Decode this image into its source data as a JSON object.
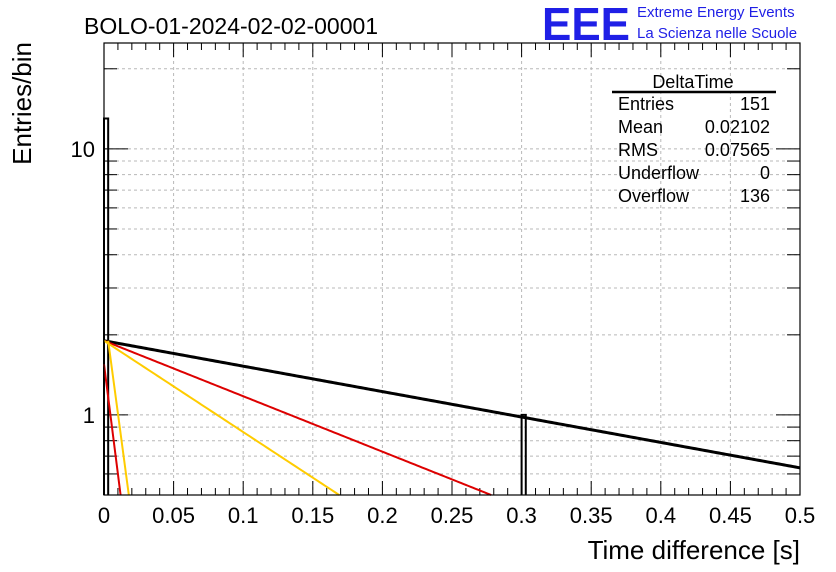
{
  "chart_data": {
    "type": "histogram",
    "title": "BOLO-01-2024-02-02-00001",
    "xlabel": "Time difference [s]",
    "ylabel": "Entries/bin",
    "xlim": [
      0,
      0.5
    ],
    "ylim": [
      0.5,
      25
    ],
    "yscale": "log",
    "grid": true,
    "x_ticks": [
      "0",
      "0.05",
      "0.1",
      "0.15",
      "0.2",
      "0.25",
      "0.3",
      "0.35",
      "0.4",
      "0.45",
      "0.5"
    ],
    "y_tick_labels": [
      {
        "value": 1,
        "label": "1"
      },
      {
        "value": 10,
        "label": "10"
      }
    ],
    "histogram": {
      "bins": [
        {
          "x0": 0.0,
          "x1": 0.003,
          "value": 13
        },
        {
          "x0": 0.3,
          "x1": 0.303,
          "value": 1
        }
      ],
      "color": "#000000"
    },
    "fits": [
      {
        "color": "#000000",
        "x0": 0.0,
        "amplitude": 1.9,
        "slope": -2.2
      },
      {
        "color": "#dd0000",
        "x0": 0.0,
        "amplitude": 1.9,
        "slope": -4.8
      },
      {
        "color": "#ffcc00",
        "x0": 0.0,
        "amplitude": 1.9,
        "slope": -7.9
      },
      {
        "color": "#ffcc00",
        "x0": 0.003,
        "amplitude": 1.9,
        "slope": -90
      },
      {
        "color": "#dd0000",
        "x0": 0.0,
        "amplitude": 1.55,
        "slope": -95
      }
    ]
  },
  "stats": {
    "title": "DeltaTime",
    "rows": [
      {
        "label": "Entries",
        "value": "151"
      },
      {
        "label": "Mean",
        "value": "0.02102"
      },
      {
        "label": "RMS",
        "value": "0.07565"
      },
      {
        "label": "Underflow",
        "value": "0"
      },
      {
        "label": "Overflow",
        "value": "136"
      }
    ]
  },
  "logo": {
    "mark": "EEE",
    "line1": "Extreme Energy Events",
    "line2": "La Scienza nelle Scuole",
    "color": "#1f1fe6"
  }
}
